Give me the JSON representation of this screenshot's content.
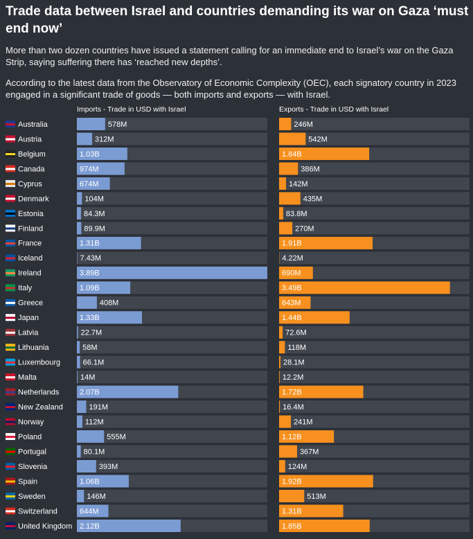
{
  "chart_data": {
    "type": "bar",
    "orientation": "horizontal",
    "title": "Trade data between Israel and countries demanding its war on Gaza ‘must end now’",
    "subtitle": [
      "More than two dozen countries have issued a statement calling for an immediate end to Israel’s war on the Gaza Strip, saying suffering there has ‘reached new depths’.",
      "According to the latest data from the Observatory of Economic Complexity (OEC), each signatory country in 2023 engaged in a significant trade of goods — both imports and exports — with Israel."
    ],
    "categories": [
      "Australia",
      "Austria",
      "Belgium",
      "Canada",
      "Cyprus",
      "Denmark",
      "Estonia",
      "Finland",
      "France",
      "Iceland",
      "Ireland",
      "Italy",
      "Greece",
      "Japan",
      "Latvia",
      "Lithuania",
      "Luxembourg",
      "Malta",
      "Netherlands",
      "New Zealand",
      "Norway",
      "Poland",
      "Portugal",
      "Slovenia",
      "Spain",
      "Sweden",
      "Switzerland",
      "United Kingdom"
    ],
    "xlim": [
      0,
      3890000000
    ],
    "series": [
      {
        "name": "Imports - Trade in USD with Israel",
        "color": "#7b9bd3",
        "values": [
          578000000,
          312000000,
          1030000000,
          974000000,
          674000000,
          104000000,
          84300000,
          89900000,
          1310000000,
          7430000,
          3890000000,
          1090000000,
          408000000,
          1330000000,
          22700000,
          58000000,
          66100000,
          14000000,
          2070000000,
          191000000,
          112000000,
          555000000,
          80100000,
          393000000,
          1060000000,
          146000000,
          644000000,
          2120000000
        ],
        "value_labels": [
          "578M",
          "312M",
          "1.03B",
          "974M",
          "674M",
          "104M",
          "84.3M",
          "89.9M",
          "1.31B",
          "7.43M",
          "3.89B",
          "1.09B",
          "408M",
          "1.33B",
          "22.7M",
          "58M",
          "66.1M",
          "14M",
          "2.07B",
          "191M",
          "112M",
          "555M",
          "80.1M",
          "393M",
          "1.06B",
          "146M",
          "644M",
          "2.12B"
        ]
      },
      {
        "name": "Exports - Trade in USD with Israel",
        "color": "#f7901e",
        "values": [
          246000000,
          542000000,
          1840000000,
          386000000,
          142000000,
          435000000,
          83800000,
          270000000,
          1910000000,
          4220000,
          690000000,
          3490000000,
          643000000,
          1440000000,
          72600000,
          118000000,
          28100000,
          12200000,
          1720000000,
          16400000,
          241000000,
          1120000000,
          367000000,
          124000000,
          1920000000,
          513000000,
          1310000000,
          1850000000
        ],
        "value_labels": [
          "246M",
          "542M",
          "1.84B",
          "386M",
          "142M",
          "435M",
          "83.8M",
          "270M",
          "1.91B",
          "4.22M",
          "690M",
          "3.49B",
          "643M",
          "1.44B",
          "72.6M",
          "118M",
          "28.1M",
          "12.2M",
          "1.72B",
          "16.4M",
          "241M",
          "1.12B",
          "367M",
          "124M",
          "1.92B",
          "513M",
          "1.31B",
          "1.85B"
        ]
      }
    ]
  }
}
